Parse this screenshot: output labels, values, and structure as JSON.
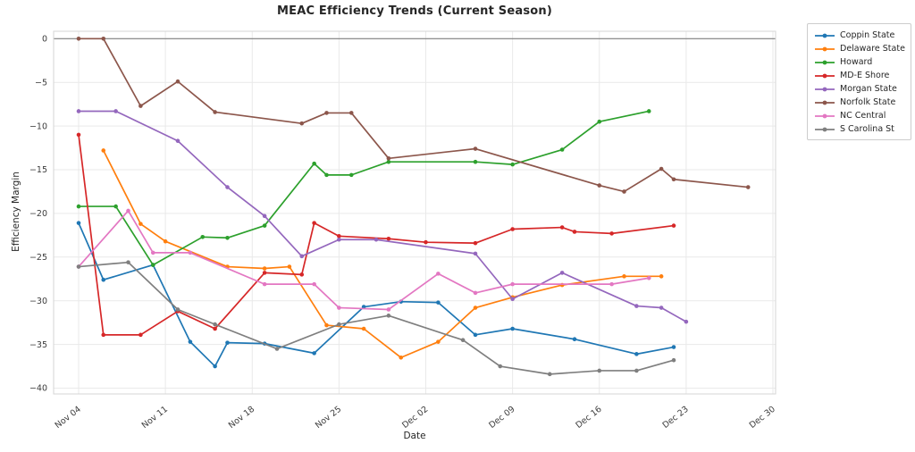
{
  "chart_data": {
    "type": "line",
    "title": "MEAC Efficiency Trends (Current Season)",
    "xlabel": "Date",
    "ylabel": "Efficiency Margin",
    "grid": true,
    "zero_line": true,
    "legend_position": "outside-right",
    "ylim": [
      -40.7,
      0.9
    ],
    "xlim_days": [
      -2,
      56.3
    ],
    "y_ticks": [
      0,
      -5,
      -10,
      -15,
      -20,
      -25,
      -30,
      -35,
      -40
    ],
    "x_ticks": [
      {
        "label": "Nov 04",
        "day": 0
      },
      {
        "label": "Nov 11",
        "day": 7
      },
      {
        "label": "Nov 18",
        "day": 14
      },
      {
        "label": "Nov 25",
        "day": 21
      },
      {
        "label": "Dec 02",
        "day": 28
      },
      {
        "label": "Dec 09",
        "day": 35
      },
      {
        "label": "Dec 16",
        "day": 42
      },
      {
        "label": "Dec 23",
        "day": 49
      },
      {
        "label": "Dec 30",
        "day": 56
      }
    ],
    "series": [
      {
        "name": "Coppin State",
        "color": "#1f77b4",
        "points": [
          {
            "date": "Nov 04",
            "day": 0,
            "value": -21.1
          },
          {
            "date": "Nov 06",
            "day": 2,
            "value": -27.6
          },
          {
            "date": "Nov 10",
            "day": 6,
            "value": -25.9
          },
          {
            "date": "Nov 13",
            "day": 9,
            "value": -34.7
          },
          {
            "date": "Nov 15",
            "day": 11,
            "value": -37.5
          },
          {
            "date": "Nov 16",
            "day": 12,
            "value": -34.8
          },
          {
            "date": "Nov 19",
            "day": 15,
            "value": -34.9
          },
          {
            "date": "Nov 23",
            "day": 19,
            "value": -36.0
          },
          {
            "date": "Nov 27",
            "day": 23,
            "value": -30.7
          },
          {
            "date": "Nov 30",
            "day": 26,
            "value": -30.1
          },
          {
            "date": "Dec 03",
            "day": 29,
            "value": -30.2
          },
          {
            "date": "Dec 06",
            "day": 32,
            "value": -33.9
          },
          {
            "date": "Dec 09",
            "day": 35,
            "value": -33.2
          },
          {
            "date": "Dec 14",
            "day": 40,
            "value": -34.4
          },
          {
            "date": "Dec 19",
            "day": 45,
            "value": -36.1
          },
          {
            "date": "Dec 22",
            "day": 48,
            "value": -35.3
          }
        ]
      },
      {
        "name": "Delaware State",
        "color": "#ff7f0e",
        "points": [
          {
            "date": "Nov 06",
            "day": 2,
            "value": -12.8
          },
          {
            "date": "Nov 09",
            "day": 5,
            "value": -21.2
          },
          {
            "date": "Nov 11",
            "day": 7,
            "value": -23.2
          },
          {
            "date": "Nov 16",
            "day": 12,
            "value": -26.1
          },
          {
            "date": "Nov 19",
            "day": 15,
            "value": -26.3
          },
          {
            "date": "Nov 21",
            "day": 17,
            "value": -26.1
          },
          {
            "date": "Nov 24",
            "day": 20,
            "value": -32.8
          },
          {
            "date": "Nov 27",
            "day": 23,
            "value": -33.2
          },
          {
            "date": "Nov 30",
            "day": 26,
            "value": -36.5
          },
          {
            "date": "Dec 03",
            "day": 29,
            "value": -34.7
          },
          {
            "date": "Dec 06",
            "day": 32,
            "value": -30.8
          },
          {
            "date": "Dec 09",
            "day": 35,
            "value": -29.6
          },
          {
            "date": "Dec 13",
            "day": 39,
            "value": -28.2
          },
          {
            "date": "Dec 18",
            "day": 44,
            "value": -27.2
          },
          {
            "date": "Dec 21",
            "day": 47,
            "value": -27.2
          }
        ]
      },
      {
        "name": "Howard",
        "color": "#2ca02c",
        "points": [
          {
            "date": "Nov 04",
            "day": 0,
            "value": -19.2
          },
          {
            "date": "Nov 07",
            "day": 3,
            "value": -19.2
          },
          {
            "date": "Nov 10",
            "day": 6,
            "value": -25.9
          },
          {
            "date": "Nov 14",
            "day": 10,
            "value": -22.7
          },
          {
            "date": "Nov 16",
            "day": 12,
            "value": -22.8
          },
          {
            "date": "Nov 19",
            "day": 15,
            "value": -21.4
          },
          {
            "date": "Nov 23",
            "day": 19,
            "value": -14.3
          },
          {
            "date": "Nov 24",
            "day": 20,
            "value": -15.6
          },
          {
            "date": "Nov 26",
            "day": 22,
            "value": -15.6
          },
          {
            "date": "Nov 29",
            "day": 25,
            "value": -14.1
          },
          {
            "date": "Dec 06",
            "day": 32,
            "value": -14.1
          },
          {
            "date": "Dec 09",
            "day": 35,
            "value": -14.4
          },
          {
            "date": "Dec 13",
            "day": 39,
            "value": -12.7
          },
          {
            "date": "Dec 16",
            "day": 42,
            "value": -9.5
          },
          {
            "date": "Dec 20",
            "day": 46,
            "value": -8.3
          }
        ]
      },
      {
        "name": "MD-E Shore",
        "color": "#d62728",
        "points": [
          {
            "date": "Nov 04",
            "day": 0,
            "value": -11.0
          },
          {
            "date": "Nov 06",
            "day": 2,
            "value": -33.9
          },
          {
            "date": "Nov 09",
            "day": 5,
            "value": -33.9
          },
          {
            "date": "Nov 12",
            "day": 8,
            "value": -31.2
          },
          {
            "date": "Nov 15",
            "day": 11,
            "value": -33.2
          },
          {
            "date": "Nov 19",
            "day": 15,
            "value": -26.8
          },
          {
            "date": "Nov 22",
            "day": 18,
            "value": -27.0
          },
          {
            "date": "Nov 23",
            "day": 19,
            "value": -21.1
          },
          {
            "date": "Nov 25",
            "day": 21,
            "value": -22.6
          },
          {
            "date": "Nov 29",
            "day": 25,
            "value": -22.9
          },
          {
            "date": "Dec 02",
            "day": 28,
            "value": -23.3
          },
          {
            "date": "Dec 06",
            "day": 32,
            "value": -23.4
          },
          {
            "date": "Dec 09",
            "day": 35,
            "value": -21.8
          },
          {
            "date": "Dec 13",
            "day": 39,
            "value": -21.6
          },
          {
            "date": "Dec 14",
            "day": 40,
            "value": -22.1
          },
          {
            "date": "Dec 17",
            "day": 43,
            "value": -22.3
          },
          {
            "date": "Dec 22",
            "day": 48,
            "value": -21.4
          }
        ]
      },
      {
        "name": "Morgan State",
        "color": "#9467bd",
        "points": [
          {
            "date": "Nov 04",
            "day": 0,
            "value": -8.3
          },
          {
            "date": "Nov 07",
            "day": 3,
            "value": -8.3
          },
          {
            "date": "Nov 12",
            "day": 8,
            "value": -11.7
          },
          {
            "date": "Nov 16",
            "day": 12,
            "value": -17.0
          },
          {
            "date": "Nov 19",
            "day": 15,
            "value": -20.3
          },
          {
            "date": "Nov 22",
            "day": 18,
            "value": -24.9
          },
          {
            "date": "Nov 25",
            "day": 21,
            "value": -23.0
          },
          {
            "date": "Nov 28",
            "day": 24,
            "value": -23.0
          },
          {
            "date": "Dec 06",
            "day": 32,
            "value": -24.6
          },
          {
            "date": "Dec 09",
            "day": 35,
            "value": -29.8
          },
          {
            "date": "Dec 13",
            "day": 39,
            "value": -26.8
          },
          {
            "date": "Dec 19",
            "day": 45,
            "value": -30.6
          },
          {
            "date": "Dec 21",
            "day": 47,
            "value": -30.8
          },
          {
            "date": "Dec 23",
            "day": 49,
            "value": -32.4
          }
        ]
      },
      {
        "name": "Norfolk State",
        "color": "#8c564b",
        "points": [
          {
            "date": "Nov 04",
            "day": 0,
            "value": 0.0
          },
          {
            "date": "Nov 06",
            "day": 2,
            "value": 0.0
          },
          {
            "date": "Nov 09",
            "day": 5,
            "value": -7.7
          },
          {
            "date": "Nov 12",
            "day": 8,
            "value": -4.9
          },
          {
            "date": "Nov 15",
            "day": 11,
            "value": -8.4
          },
          {
            "date": "Nov 22",
            "day": 18,
            "value": -9.7
          },
          {
            "date": "Nov 24",
            "day": 20,
            "value": -8.5
          },
          {
            "date": "Nov 26",
            "day": 22,
            "value": -8.5
          },
          {
            "date": "Nov 29",
            "day": 25,
            "value": -13.7
          },
          {
            "date": "Dec 06",
            "day": 32,
            "value": -12.6
          },
          {
            "date": "Dec 16",
            "day": 42,
            "value": -16.8
          },
          {
            "date": "Dec 18",
            "day": 44,
            "value": -17.5
          },
          {
            "date": "Dec 21",
            "day": 47,
            "value": -14.9
          },
          {
            "date": "Dec 22",
            "day": 48,
            "value": -16.1
          },
          {
            "date": "Dec 28",
            "day": 54,
            "value": -17.0
          }
        ]
      },
      {
        "name": "NC Central",
        "color": "#e377c2",
        "points": [
          {
            "date": "Nov 04",
            "day": 0,
            "value": -26.1
          },
          {
            "date": "Nov 08",
            "day": 4,
            "value": -19.7
          },
          {
            "date": "Nov 10",
            "day": 6,
            "value": -24.5
          },
          {
            "date": "Nov 13",
            "day": 9,
            "value": -24.5
          },
          {
            "date": "Nov 19",
            "day": 15,
            "value": -28.1
          },
          {
            "date": "Nov 23",
            "day": 19,
            "value": -28.1
          },
          {
            "date": "Nov 25",
            "day": 21,
            "value": -30.8
          },
          {
            "date": "Nov 29",
            "day": 25,
            "value": -31.0
          },
          {
            "date": "Dec 03",
            "day": 29,
            "value": -26.9
          },
          {
            "date": "Dec 06",
            "day": 32,
            "value": -29.1
          },
          {
            "date": "Dec 09",
            "day": 35,
            "value": -28.1
          },
          {
            "date": "Dec 17",
            "day": 43,
            "value": -28.1
          },
          {
            "date": "Dec 20",
            "day": 46,
            "value": -27.4
          }
        ]
      },
      {
        "name": "S Carolina St",
        "color": "#7f7f7f",
        "points": [
          {
            "date": "Nov 04",
            "day": 0,
            "value": -26.1
          },
          {
            "date": "Nov 08",
            "day": 4,
            "value": -25.6
          },
          {
            "date": "Nov 12",
            "day": 8,
            "value": -31.0
          },
          {
            "date": "Nov 15",
            "day": 11,
            "value": -32.7
          },
          {
            "date": "Nov 20",
            "day": 16,
            "value": -35.5
          },
          {
            "date": "Nov 25",
            "day": 21,
            "value": -32.7
          },
          {
            "date": "Nov 29",
            "day": 25,
            "value": -31.7
          },
          {
            "date": "Dec 05",
            "day": 31,
            "value": -34.5
          },
          {
            "date": "Dec 08",
            "day": 34,
            "value": -37.5
          },
          {
            "date": "Dec 12",
            "day": 38,
            "value": -38.4
          },
          {
            "date": "Dec 16",
            "day": 42,
            "value": -38.0
          },
          {
            "date": "Dec 19",
            "day": 45,
            "value": -38.0
          },
          {
            "date": "Dec 22",
            "day": 48,
            "value": -36.8
          }
        ]
      }
    ]
  }
}
